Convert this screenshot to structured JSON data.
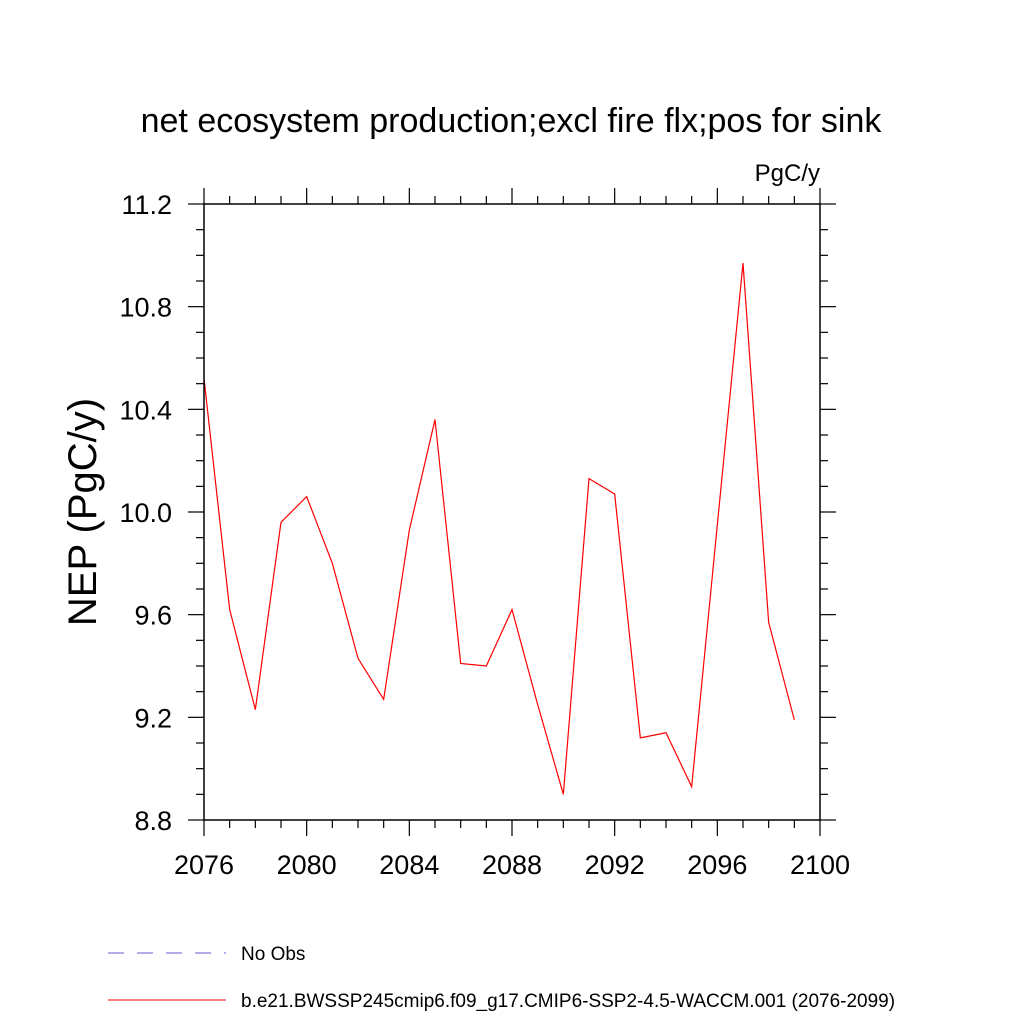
{
  "chart_data": {
    "type": "line",
    "title": "net ecosystem production;excl fire flx;pos for sink",
    "units": "PgC/y",
    "xlabel": "",
    "ylabel": "NEP  (PgC/y)",
    "xlim": [
      2076,
      2100
    ],
    "ylim": [
      8.8,
      11.2
    ],
    "x_ticks": [
      2076,
      2080,
      2084,
      2088,
      2092,
      2096,
      2100
    ],
    "y_ticks": [
      8.8,
      9.2,
      9.6,
      10.0,
      10.4,
      10.8,
      11.2
    ],
    "y_tick_labels": [
      "8.8",
      "9.2",
      "9.6",
      "10.0",
      "10.4",
      "10.8",
      "11.2"
    ],
    "grid": false,
    "series": [
      {
        "name": "b.e21.BWSSP245cmip6.f09_g17.CMIP6-SSP2-4.5-WACCM.001 (2076-2099)",
        "color": "#ff0000",
        "x": [
          2076,
          2077,
          2078,
          2079,
          2080,
          2081,
          2082,
          2083,
          2084,
          2085,
          2086,
          2087,
          2088,
          2089,
          2090,
          2091,
          2092,
          2093,
          2094,
          2095,
          2096,
          2097,
          2098,
          2099
        ],
        "values": [
          10.52,
          9.62,
          9.23,
          9.96,
          10.06,
          9.8,
          9.43,
          9.27,
          9.93,
          10.36,
          9.41,
          9.4,
          9.62,
          9.25,
          8.9,
          10.13,
          10.07,
          9.12,
          9.14,
          8.93,
          9.95,
          10.97,
          9.57,
          9.19
        ]
      }
    ],
    "legend": [
      {
        "label": "No Obs",
        "style": "dashed",
        "color": "#6a5acd"
      },
      {
        "label": "b.e21.BWSSP245cmip6.f09_g17.CMIP6-SSP2-4.5-WACCM.001 (2076-2099)",
        "style": "solid",
        "color": "#ff0000"
      }
    ],
    "legend_position": "bottom"
  }
}
